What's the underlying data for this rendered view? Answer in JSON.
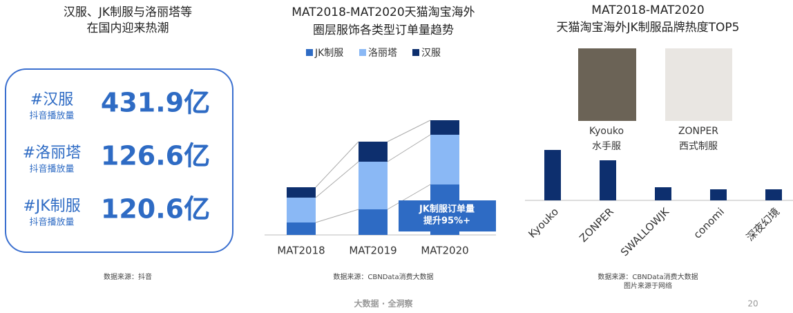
{
  "left_panel": {
    "title": [
      "汉服、JK制服与洛丽塔等",
      "在国内迎来热潮"
    ],
    "items": [
      {
        "tag": "#汉服",
        "sub": "抖音播放量",
        "value": "431.9亿"
      },
      {
        "tag": "#洛丽塔",
        "sub": "抖音播放量",
        "value": "126.6亿"
      },
      {
        "tag": "#JK制服",
        "sub": "抖音播放量",
        "value": "120.6亿"
      }
    ],
    "source": "数据来源：抖音"
  },
  "chart_data": [
    {
      "type": "stacked_bar",
      "title": [
        "MAT2018-MAT2020天猫淘宝海外",
        "圈层服饰各类型订单量趋势"
      ],
      "categories": [
        "MAT2018",
        "MAT2019",
        "MAT2020"
      ],
      "series": [
        {
          "name": "JK制服",
          "color": "#2e6bc4",
          "values": [
            18,
            37,
            73
          ]
        },
        {
          "name": "洛丽塔",
          "color": "#8ab8f5",
          "values": [
            36,
            69,
            72
          ]
        },
        {
          "name": "汉服",
          "color": "#0d2f6e",
          "values": [
            15,
            29,
            21
          ]
        }
      ],
      "annotation": [
        "JK制服订单量",
        "提升95%+"
      ],
      "source": "数据来源：CBNData消费大数据"
    },
    {
      "type": "bar",
      "title": [
        "MAT2018-MAT2020",
        "天猫淘宝海外JK制服品牌热度TOP5"
      ],
      "categories": [
        "Kyouko",
        "ZONPER",
        "SWALLOWJK",
        "conomi",
        "深夜幻境"
      ],
      "values": [
        73,
        58,
        19,
        16,
        16
      ],
      "color": "#0d2f6e",
      "captions": [
        [
          "Kyouko",
          "水手服"
        ],
        [
          "ZONPER",
          "西式制服"
        ]
      ],
      "source": [
        "数据来源：CBNData消费大数据",
        "图片来源于网络"
      ]
    }
  ],
  "footer": {
    "text": "大数据 · 全洞察",
    "page": "20"
  }
}
